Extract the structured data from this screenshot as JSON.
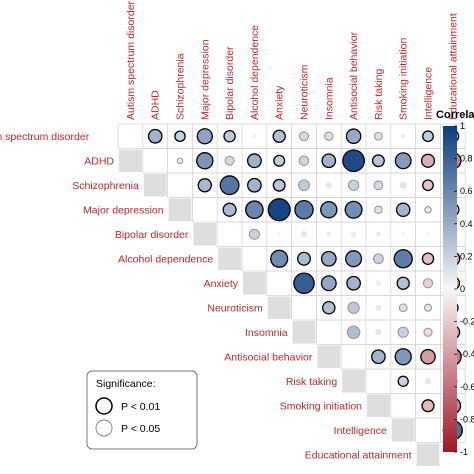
{
  "chart_data": {
    "type": "heatmap",
    "variables": [
      "Autism spectrum disorder",
      "ADHD",
      "Schizophrenia",
      "Major depression",
      "Bipolar disorder",
      "Alcohol dependence",
      "Anxiety",
      "Neuroticism",
      "Insomnia",
      "Antisocial behavior",
      "Risk taking",
      "Smoking initiation",
      "Intelligence",
      "Educational attainment"
    ],
    "matrix": [
      [
        null,
        0.36,
        0.21,
        0.45,
        0.25,
        0.03,
        0.29,
        0.16,
        0.14,
        0.41,
        0.12,
        0.05,
        0.22,
        0.27
      ],
      [
        null,
        null,
        0.06,
        0.52,
        0.16,
        0.37,
        0.23,
        0.18,
        0.36,
        0.92,
        0.27,
        0.49,
        -0.33,
        -0.52
      ],
      [
        null,
        null,
        null,
        0.34,
        0.69,
        0.36,
        0.27,
        0.23,
        0.08,
        0.21,
        0.15,
        0.1,
        -0.22,
        0.08
      ],
      [
        null,
        null,
        null,
        null,
        0.33,
        0.6,
        0.95,
        0.66,
        0.52,
        0.56,
        0.11,
        0.35,
        -0.08,
        -0.3
      ],
      [
        null,
        null,
        null,
        null,
        null,
        0.2,
        0.02,
        0.08,
        0.05,
        0.06,
        0.05,
        0.02,
        0.02,
        0.04
      ],
      [
        null,
        null,
        null,
        null,
        null,
        null,
        0.57,
        0.32,
        0.42,
        0.5,
        0.19,
        0.65,
        -0.25,
        -0.38
      ],
      [
        null,
        null,
        null,
        null,
        null,
        null,
        null,
        0.82,
        0.43,
        0.36,
        0.06,
        0.29,
        -0.17,
        -0.35
      ],
      [
        null,
        null,
        null,
        null,
        null,
        null,
        null,
        null,
        0.3,
        0.25,
        0.07,
        0.12,
        -0.1,
        -0.22
      ],
      [
        null,
        null,
        null,
        null,
        null,
        null,
        null,
        null,
        null,
        0.31,
        0.08,
        0.21,
        -0.13,
        -0.37
      ],
      [
        null,
        null,
        null,
        null,
        null,
        null,
        null,
        null,
        null,
        null,
        0.36,
        0.51,
        -0.41,
        -0.55
      ],
      [
        null,
        null,
        null,
        null,
        null,
        null,
        null,
        null,
        null,
        null,
        null,
        0.2,
        0.08,
        0.15
      ],
      [
        null,
        null,
        null,
        null,
        null,
        null,
        null,
        null,
        null,
        null,
        null,
        null,
        -0.28,
        -0.48
      ],
      [
        null,
        null,
        null,
        null,
        null,
        null,
        null,
        null,
        null,
        null,
        null,
        null,
        null,
        0.72
      ],
      [
        null,
        null,
        null,
        null,
        null,
        null,
        null,
        null,
        null,
        null,
        null,
        null,
        null,
        null
      ]
    ],
    "significance": [
      [
        null,
        2,
        2,
        2,
        2,
        0,
        2,
        1,
        1,
        2,
        1,
        0,
        2,
        2
      ],
      [
        null,
        null,
        1,
        2,
        1,
        2,
        2,
        1,
        2,
        2,
        2,
        2,
        2,
        2
      ],
      [
        null,
        null,
        null,
        2,
        2,
        2,
        2,
        1,
        0,
        1,
        1,
        0,
        2,
        1
      ],
      [
        null,
        null,
        null,
        null,
        2,
        2,
        2,
        2,
        2,
        2,
        1,
        2,
        1,
        2
      ],
      [
        null,
        null,
        null,
        null,
        null,
        1,
        0,
        0,
        0,
        0,
        0,
        0,
        0,
        0
      ],
      [
        null,
        null,
        null,
        null,
        null,
        null,
        2,
        2,
        2,
        2,
        1,
        2,
        2,
        2
      ],
      [
        null,
        null,
        null,
        null,
        null,
        null,
        null,
        2,
        2,
        2,
        0,
        2,
        1,
        2
      ],
      [
        null,
        null,
        null,
        null,
        null,
        null,
        null,
        null,
        2,
        1,
        0,
        1,
        1,
        2
      ],
      [
        null,
        null,
        null,
        null,
        null,
        null,
        null,
        null,
        null,
        1,
        0,
        1,
        1,
        2
      ],
      [
        null,
        null,
        null,
        null,
        null,
        null,
        null,
        null,
        null,
        null,
        2,
        2,
        2,
        2
      ],
      [
        null,
        null,
        null,
        null,
        null,
        null,
        null,
        null,
        null,
        null,
        null,
        2,
        0,
        1
      ],
      [
        null,
        null,
        null,
        null,
        null,
        null,
        null,
        null,
        null,
        null,
        null,
        null,
        2,
        2
      ],
      [
        null,
        null,
        null,
        null,
        null,
        null,
        null,
        null,
        null,
        null,
        null,
        null,
        null,
        2
      ],
      [
        null,
        null,
        null,
        null,
        null,
        null,
        null,
        null,
        null,
        null,
        null,
        null,
        null,
        null
      ]
    ],
    "colorbar": {
      "title": "Correla",
      "ticks": [
        "1",
        "0.8",
        "0.6",
        "0.4",
        "0.2",
        "0",
        "-0.2",
        "-0.4",
        "-0.6",
        "-0.8",
        "-1"
      ],
      "tick_values": [
        1,
        0.8,
        0.6,
        0.4,
        0.2,
        0,
        -0.2,
        -0.4,
        -0.6,
        -0.8,
        -1
      ],
      "range": [
        -1,
        1
      ],
      "color_positive": "#0b3c7d",
      "color_zero": "#f7f7f7",
      "color_negative": "#a01826"
    },
    "legend": {
      "title": "Significance:",
      "entries": [
        {
          "label": "P < 0.01",
          "ring_color": "#000000"
        },
        {
          "label": "P < 0.05",
          "ring_color": "#9a9a9a"
        }
      ]
    },
    "label_color": "#c0282d",
    "diagonal_color": "#dedede",
    "grid": true,
    "layout": "upper-triangle"
  }
}
